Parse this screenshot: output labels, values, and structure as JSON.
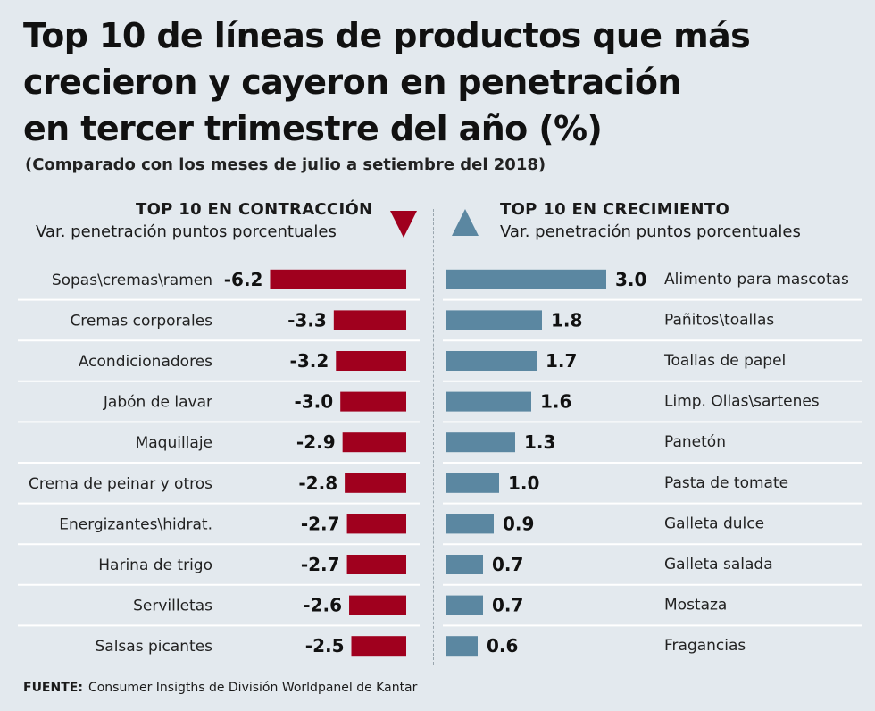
{
  "header": {
    "title_lines": [
      "Top 10 de líneas de productos que más",
      "crecieron y cayeron en penetración",
      "en tercer trimestre del año (%)"
    ],
    "subtitle": "(Comparado con  los meses de julio a setiembre del 2018)"
  },
  "left_panel": {
    "heading": "TOP 10 EN CONTRACCIÓN",
    "subheading": "Var. penetración puntos porcentuales",
    "color": "#a0001e",
    "icon": "triangle-down-icon"
  },
  "right_panel": {
    "heading": "TOP 10 EN CRECIMIENTO",
    "subheading": "Var. penetración puntos porcentuales",
    "color": "#5b87a1",
    "icon": "triangle-up-icon"
  },
  "chart_data": [
    {
      "type": "bar",
      "orientation": "horizontal",
      "title": "TOP 10 EN CONTRACCIÓN",
      "xlabel": "Var. penetración puntos porcentuales",
      "categories": [
        "Sopas\\cremas\\ramen",
        "Cremas corporales",
        "Acondicionadores",
        "Jabón de lavar",
        "Maquillaje",
        "Crema de peinar y otros",
        "Energizantes\\hidrat.",
        "Harina de trigo",
        "Servilletas",
        "Salsas picantes"
      ],
      "values": [
        -6.2,
        -3.3,
        -3.2,
        -3.0,
        -2.9,
        -2.8,
        -2.7,
        -2.7,
        -2.6,
        -2.5
      ],
      "value_labels": [
        "-6.2",
        "-3.3",
        "-3.2",
        "-3.0",
        "-2.9",
        "-2.8",
        "-2.7",
        "-2.7",
        "-2.6",
        "-2.5"
      ],
      "color": "#a0001e"
    },
    {
      "type": "bar",
      "orientation": "horizontal",
      "title": "TOP 10 EN CRECIMIENTO",
      "xlabel": "Var. penetración puntos porcentuales",
      "categories": [
        "Alimento para mascotas",
        "Pañitos\\toallas",
        "Toallas de papel",
        "Limp. Ollas\\sartenes",
        "Panetón",
        "Pasta de tomate",
        "Galleta dulce",
        "Galleta salada",
        "Mostaza",
        "Fragancias"
      ],
      "values": [
        3.0,
        1.8,
        1.7,
        1.6,
        1.3,
        1.0,
        0.9,
        0.7,
        0.7,
        0.6
      ],
      "value_labels": [
        "3.0",
        "1.8",
        "1.7",
        "1.6",
        "1.3",
        "1.0",
        "0.9",
        "0.7",
        "0.7",
        "0.6"
      ],
      "color": "#5b87a1"
    }
  ],
  "footer": {
    "source_label": "FUENTE:",
    "source_text": "Consumer Insigths de División Worldpanel de Kantar"
  }
}
